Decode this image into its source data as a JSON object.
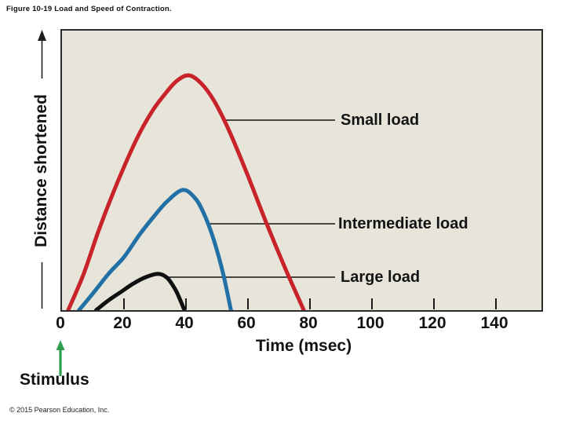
{
  "page": {
    "title": "Figure 10-19 Load and Speed of Contraction.",
    "copyright": "© 2015 Pearson Education, Inc."
  },
  "chart_data": {
    "type": "line",
    "title": "Figure 10-19 Load and Speed of Contraction.",
    "xlabel": "Time (msec)",
    "ylabel": "Distance shortened",
    "x_ticks": [
      0,
      20,
      40,
      60,
      80,
      100,
      120,
      140
    ],
    "xlim": [
      0,
      156
    ],
    "ylim": [
      0,
      1
    ],
    "y_units": "relative distance (unlabeled axis, arrow indicates increase)",
    "grid": false,
    "legend_position": "inline leader-line labels",
    "plot_bg_color": "#e7e5da",
    "axis_color": "#2b2b2b",
    "stimulus": {
      "label": "Stimulus",
      "time_msec": 0,
      "arrow_color": "#2f9e50"
    },
    "series": [
      {
        "name": "Small load",
        "color": "#c8232a",
        "latent_period_msec": 2,
        "peak": {
          "t_msec": 41,
          "distance_rel": 0.84
        },
        "end_msec": 78,
        "points": [
          [
            2,
            0
          ],
          [
            7,
            0.13
          ],
          [
            12,
            0.29
          ],
          [
            18,
            0.46
          ],
          [
            24,
            0.61
          ],
          [
            29,
            0.71
          ],
          [
            33,
            0.77
          ],
          [
            37,
            0.82
          ],
          [
            41,
            0.84
          ],
          [
            45,
            0.81
          ],
          [
            49,
            0.75
          ],
          [
            54,
            0.64
          ],
          [
            60,
            0.48
          ],
          [
            66,
            0.31
          ],
          [
            72,
            0.15
          ],
          [
            78,
            0
          ]
        ]
      },
      {
        "name": "Intermediate load",
        "color": "#2171a6",
        "latent_period_msec": 5.5,
        "peak": {
          "t_msec": 39,
          "distance_rel": 0.43
        },
        "end_msec": 54.5,
        "points": [
          [
            5.5,
            0
          ],
          [
            10,
            0.06
          ],
          [
            15,
            0.13
          ],
          [
            20,
            0.19
          ],
          [
            25,
            0.27
          ],
          [
            30,
            0.34
          ],
          [
            34,
            0.39
          ],
          [
            39,
            0.43
          ],
          [
            43,
            0.4
          ],
          [
            46,
            0.34
          ],
          [
            49,
            0.25
          ],
          [
            52,
            0.13
          ],
          [
            54.5,
            0
          ]
        ]
      },
      {
        "name": "Large load",
        "color": "#101010",
        "latent_period_msec": 11,
        "peak": {
          "t_msec": 31,
          "distance_rel": 0.13
        },
        "end_msec": 39.5,
        "points": [
          [
            11,
            0
          ],
          [
            15,
            0.035
          ],
          [
            19,
            0.065
          ],
          [
            23,
            0.095
          ],
          [
            27,
            0.118
          ],
          [
            31,
            0.13
          ],
          [
            34,
            0.115
          ],
          [
            36.5,
            0.075
          ],
          [
            38,
            0.04
          ],
          [
            39.5,
            0
          ]
        ]
      }
    ]
  }
}
